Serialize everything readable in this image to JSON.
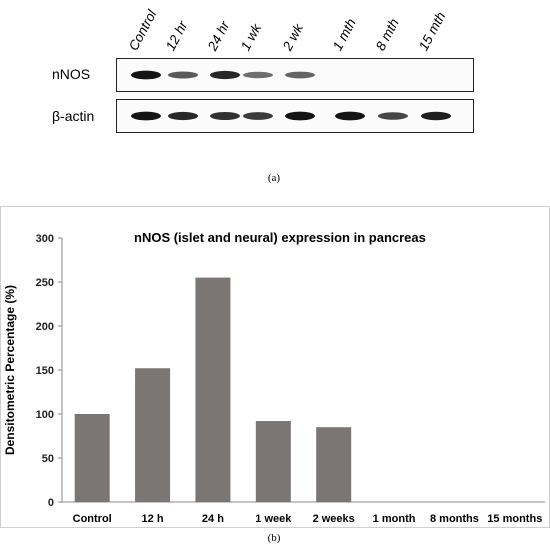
{
  "blot": {
    "lanes": [
      "Control",
      "12 hr",
      "24 hr",
      "1 wk",
      "2 wk",
      "1 mth",
      "8 mth",
      "15 mth"
    ],
    "rows": [
      {
        "label": "nNOS",
        "band_intensity": [
          0.95,
          0.6,
          0.85,
          0.5,
          0.55,
          0.0,
          0.0,
          0.0
        ]
      },
      {
        "label": "β-actin",
        "band_intensity": [
          0.95,
          0.85,
          0.8,
          0.75,
          0.95,
          0.95,
          0.7,
          0.9
        ]
      }
    ],
    "caption": "(a)"
  },
  "chart_data": {
    "type": "bar",
    "title": "nNOS (islet and neural) expression in pancreas",
    "xlabel": "",
    "ylabel": "Densitometric Percentage (%)",
    "categories": [
      "Control",
      "12 h",
      "24 h",
      "1 week",
      "2 weeks",
      "1 month",
      "8 months",
      "15 months"
    ],
    "values": [
      100,
      152,
      255,
      92,
      85,
      0,
      0,
      0
    ],
    "ylim": [
      0,
      300
    ],
    "yticks": [
      0,
      50,
      100,
      150,
      200,
      250,
      300
    ],
    "bar_color": "#7b7574",
    "grid": false,
    "caption": "(b)"
  }
}
